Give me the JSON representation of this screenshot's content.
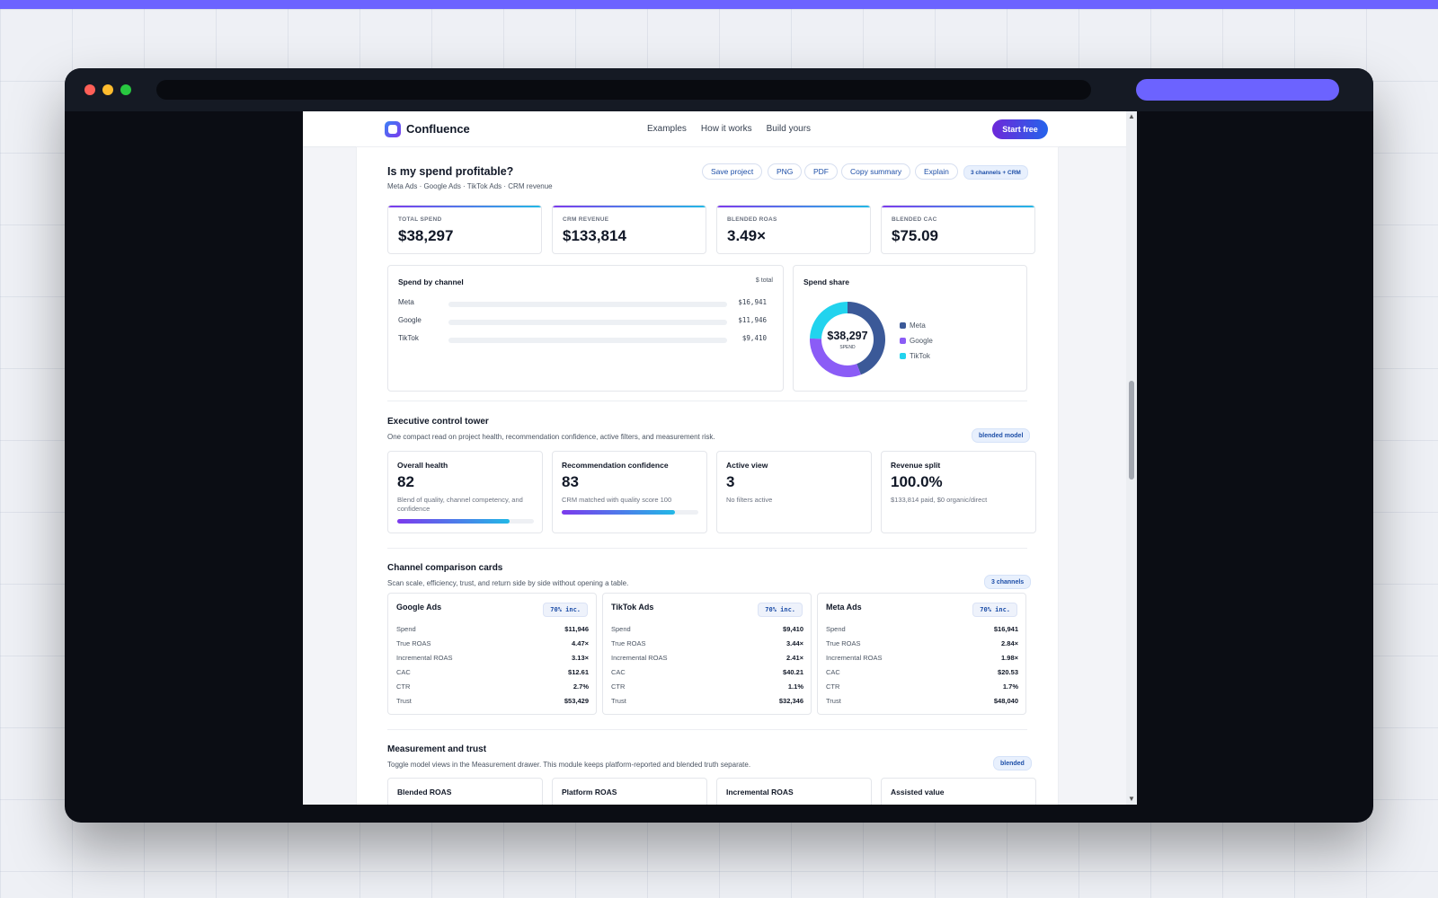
{
  "app": {
    "brand": "Confluence",
    "nav_links": [
      "Examples",
      "How it works",
      "Build yours"
    ],
    "cta": "Start free"
  },
  "report": {
    "title": "Is my spend profitable?",
    "subtitle": "Meta Ads · Google Ads · TikTok Ads · CRM revenue",
    "actions": [
      "Save project",
      "PNG",
      "PDF",
      "Copy summary",
      "Explain"
    ],
    "scope_tag": "3 channels + CRM"
  },
  "kpis": [
    {
      "label": "TOTAL SPEND",
      "value": "$38,297"
    },
    {
      "label": "CRM REVENUE",
      "value": "$133,814"
    },
    {
      "label": "BLENDED ROAS",
      "value": "3.49×"
    },
    {
      "label": "BLENDED CAC",
      "value": "$75.09"
    }
  ],
  "spend_by_channel": {
    "title": "Spend by channel",
    "unit_label": "$ total",
    "rows": [
      {
        "name": "Meta",
        "value": "$16,941"
      },
      {
        "name": "Google",
        "value": "$11,946"
      },
      {
        "name": "TikTok",
        "value": "$9,410"
      }
    ]
  },
  "spend_share": {
    "title": "Spend share",
    "center_value": "$38,297",
    "center_label": "SPEND",
    "legend": [
      "Meta",
      "Google",
      "TikTok"
    ],
    "colors": {
      "Meta": "#3b5998",
      "Google": "#8b5cf6",
      "TikTok": "#22d3ee"
    }
  },
  "chart_data": {
    "type": "pie",
    "categories": [
      "Meta",
      "Google",
      "TikTok"
    ],
    "values": [
      16941,
      11946,
      9410
    ],
    "title": "Spend share"
  },
  "control_tower": {
    "title": "Executive control tower",
    "subtitle": "One compact read on project health, recommendation confidence, active filters, and measurement risk.",
    "tag": "blended model",
    "cards": [
      {
        "title": "Overall health",
        "value": "82",
        "desc": "Blend of quality, channel competency, and confidence",
        "progress": 82
      },
      {
        "title": "Recommendation confidence",
        "value": "83",
        "desc": "CRM matched with quality score 100",
        "progress": 83
      },
      {
        "title": "Active view",
        "value": "3",
        "desc": "No filters active"
      },
      {
        "title": "Revenue split",
        "value": "100.0%",
        "desc": "$133,814 paid, $0 organic/direct"
      }
    ]
  },
  "channel_comparison": {
    "title": "Channel comparison cards",
    "subtitle": "Scan scale, efficiency, trust, and return side by side without opening a table.",
    "tag": "3 channels",
    "cards": [
      {
        "name": "Google Ads",
        "tag": "70% inc.",
        "rows": [
          {
            "k": "Spend",
            "v": "$11,946"
          },
          {
            "k": "True ROAS",
            "v": "4.47×"
          },
          {
            "k": "Incremental ROAS",
            "v": "3.13×"
          },
          {
            "k": "CAC",
            "v": "$12.61"
          },
          {
            "k": "CTR",
            "v": "2.7%"
          },
          {
            "k": "Trust",
            "v": "$53,429"
          }
        ]
      },
      {
        "name": "TikTok Ads",
        "tag": "70% inc.",
        "rows": [
          {
            "k": "Spend",
            "v": "$9,410"
          },
          {
            "k": "True ROAS",
            "v": "3.44×"
          },
          {
            "k": "Incremental ROAS",
            "v": "2.41×"
          },
          {
            "k": "CAC",
            "v": "$40.21"
          },
          {
            "k": "CTR",
            "v": "1.1%"
          },
          {
            "k": "Trust",
            "v": "$32,346"
          }
        ]
      },
      {
        "name": "Meta Ads",
        "tag": "70% inc.",
        "rows": [
          {
            "k": "Spend",
            "v": "$16,941"
          },
          {
            "k": "True ROAS",
            "v": "2.84×"
          },
          {
            "k": "Incremental ROAS",
            "v": "1.98×"
          },
          {
            "k": "CAC",
            "v": "$20.53"
          },
          {
            "k": "CTR",
            "v": "1.7%"
          },
          {
            "k": "Trust",
            "v": "$48,040"
          }
        ]
      }
    ]
  },
  "measurement": {
    "title": "Measurement and trust",
    "subtitle": "Toggle model views in the Measurement drawer. This module keeps platform-reported and blended truth separate.",
    "tag": "blended",
    "cards": [
      "Blended ROAS",
      "Platform ROAS",
      "Incremental ROAS",
      "Assisted value"
    ]
  }
}
